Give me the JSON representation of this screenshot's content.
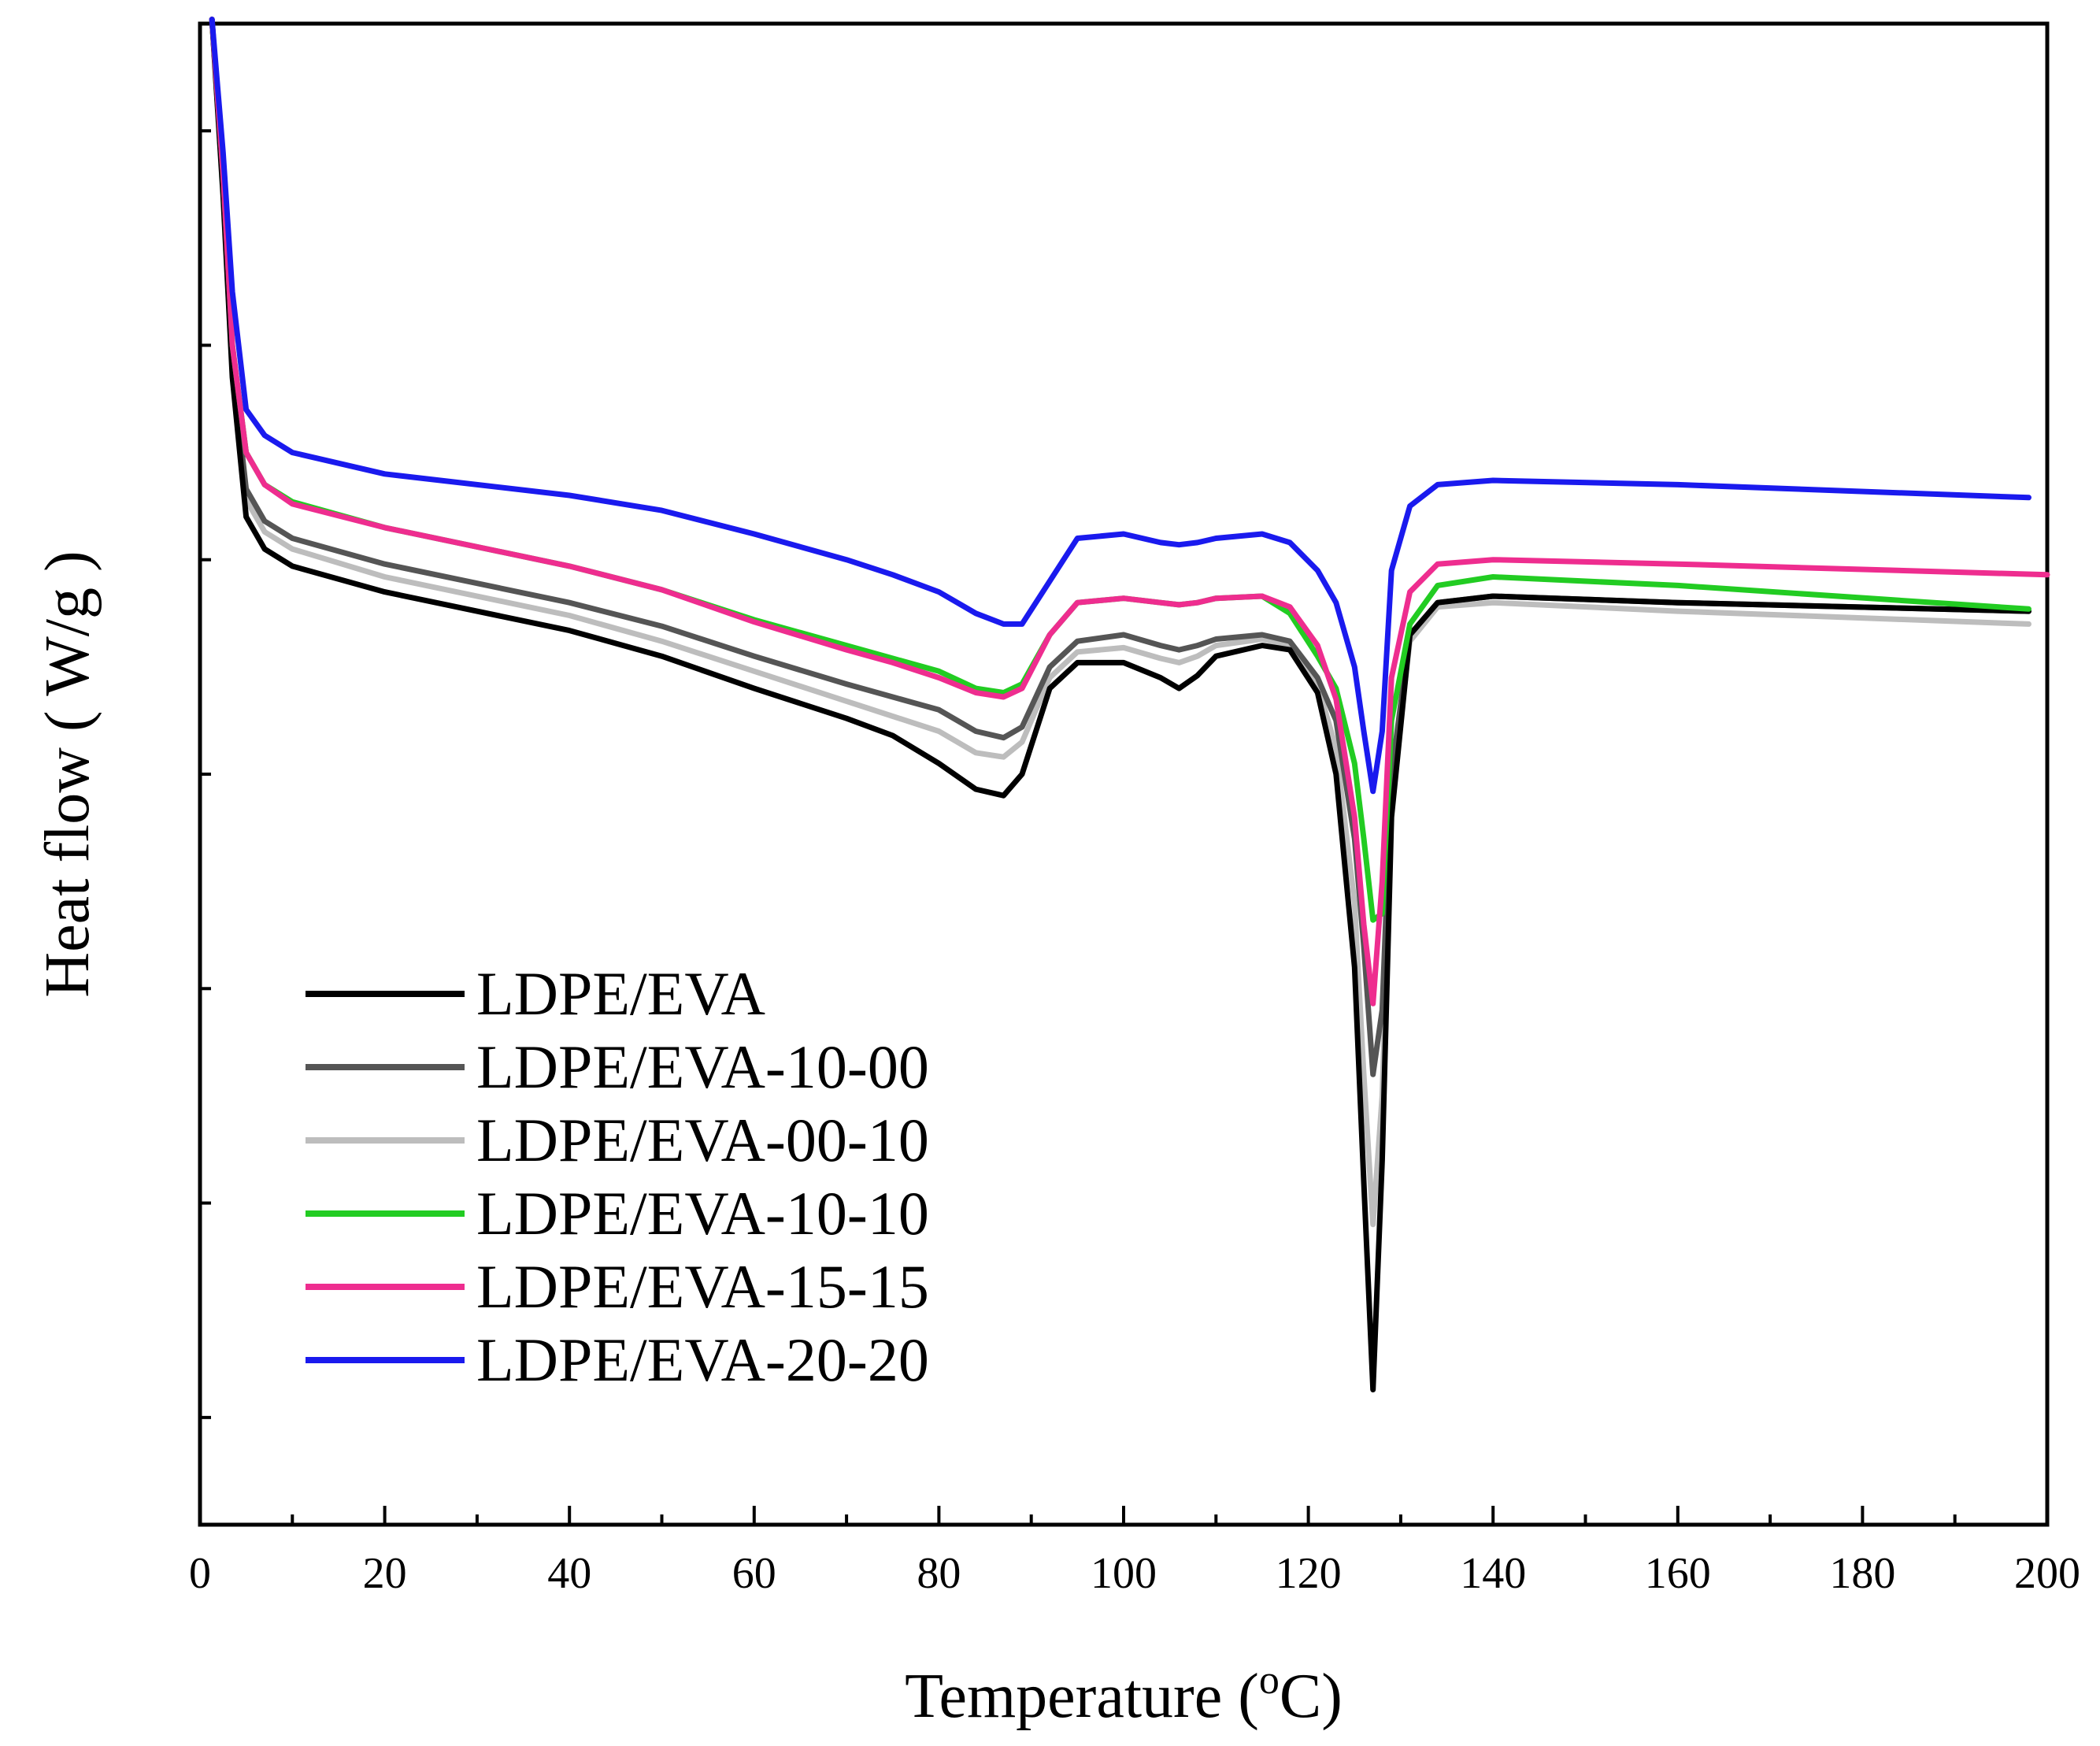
{
  "chart_data": {
    "type": "line",
    "title": "",
    "xlabel_main": "Temperature (",
    "xlabel_sup": "o",
    "xlabel_end": "C)",
    "ylabel": "Heat flow ( W/g )",
    "xlim": [
      0,
      200
    ],
    "ylim": [
      0,
      7
    ],
    "x_ticks": [
      0,
      20,
      40,
      60,
      80,
      100,
      120,
      140,
      160,
      180,
      200
    ],
    "x_tick_labels": [
      "0",
      "20",
      "40",
      "60",
      "80",
      "100",
      "120",
      "140",
      "160",
      "180",
      "200"
    ],
    "x_minor_step": 10,
    "y_ticks": [
      0.5,
      1.5,
      2.5,
      3.5,
      4.5,
      5.5,
      6.5
    ],
    "grid": false,
    "legend_position": "bottom-left",
    "series": [
      {
        "name": "LDPE/EVA",
        "color": "#000000",
        "x": [
          1.3,
          2.5,
          3.5,
          5,
          7,
          10,
          20,
          40,
          50,
          60,
          70,
          75,
          80,
          84,
          87,
          89,
          92,
          95,
          100,
          104,
          106,
          108,
          110,
          115,
          118,
          121,
          123,
          125,
          126,
          127,
          128,
          129,
          131,
          134,
          140,
          160,
          198
        ],
        "y": [
          7.02,
          6.2,
          5.35,
          4.7,
          4.55,
          4.47,
          4.35,
          4.17,
          4.05,
          3.9,
          3.76,
          3.68,
          3.55,
          3.43,
          3.4,
          3.5,
          3.9,
          4.02,
          4.02,
          3.95,
          3.9,
          3.96,
          4.05,
          4.1,
          4.08,
          3.88,
          3.5,
          2.6,
          1.6,
          0.63,
          1.7,
          3.3,
          4.15,
          4.3,
          4.33,
          4.3,
          4.26
        ]
      },
      {
        "name": "LDPE/EVA-10-00",
        "color": "#555555",
        "x": [
          1.3,
          2.5,
          3.5,
          5,
          7,
          10,
          20,
          40,
          50,
          60,
          70,
          75,
          80,
          84,
          87,
          89,
          92,
          95,
          100,
          104,
          106,
          108,
          110,
          115,
          118,
          121,
          123,
          125,
          126,
          127,
          128,
          129,
          131,
          134,
          140,
          160,
          198
        ],
        "y": [
          7.02,
          6.25,
          5.4,
          4.83,
          4.68,
          4.6,
          4.48,
          4.3,
          4.19,
          4.05,
          3.92,
          3.86,
          3.8,
          3.7,
          3.67,
          3.72,
          4.0,
          4.12,
          4.15,
          4.1,
          4.08,
          4.1,
          4.13,
          4.15,
          4.12,
          3.95,
          3.75,
          3.2,
          2.7,
          2.1,
          2.4,
          3.5,
          4.15,
          4.3,
          4.33,
          4.3,
          4.26
        ]
      },
      {
        "name": "LDPE/EVA-00-10",
        "color": "#bdbdbd",
        "x": [
          1.3,
          2.5,
          3.5,
          5,
          7,
          10,
          20,
          40,
          50,
          60,
          70,
          75,
          80,
          84,
          87,
          89,
          92,
          95,
          100,
          104,
          106,
          108,
          110,
          115,
          118,
          121,
          123,
          125,
          126,
          127,
          128,
          129,
          131,
          134,
          140,
          160,
          198
        ],
        "y": [
          7.02,
          6.22,
          5.38,
          4.78,
          4.63,
          4.55,
          4.42,
          4.24,
          4.12,
          3.98,
          3.84,
          3.77,
          3.7,
          3.6,
          3.58,
          3.65,
          3.95,
          4.07,
          4.09,
          4.04,
          4.02,
          4.05,
          4.1,
          4.13,
          4.1,
          3.92,
          3.62,
          2.9,
          2.1,
          1.4,
          2.0,
          3.4,
          4.12,
          4.28,
          4.3,
          4.26,
          4.2
        ]
      },
      {
        "name": "LDPE/EVA-10-10",
        "color": "#22cc22",
        "x": [
          1.3,
          2.5,
          3.5,
          5,
          7,
          10,
          20,
          40,
          50,
          60,
          70,
          75,
          80,
          84,
          87,
          89,
          92,
          95,
          100,
          104,
          106,
          108,
          110,
          115,
          118,
          121,
          123,
          125,
          126,
          127,
          128,
          129,
          131,
          134,
          140,
          160,
          198
        ],
        "y": [
          7.02,
          6.3,
          5.5,
          5.0,
          4.85,
          4.77,
          4.65,
          4.47,
          4.36,
          4.22,
          4.1,
          4.04,
          3.98,
          3.9,
          3.88,
          3.92,
          4.15,
          4.3,
          4.32,
          4.3,
          4.29,
          4.3,
          4.32,
          4.33,
          4.25,
          4.05,
          3.9,
          3.55,
          3.2,
          2.82,
          2.85,
          3.75,
          4.2,
          4.38,
          4.42,
          4.38,
          4.27
        ]
      },
      {
        "name": "LDPE/EVA-15-15",
        "color": "#ee2d8f",
        "x": [
          1.3,
          2.5,
          3.5,
          5,
          7,
          10,
          20,
          40,
          50,
          60,
          70,
          75,
          80,
          84,
          87,
          89,
          92,
          95,
          100,
          104,
          106,
          108,
          110,
          115,
          118,
          121,
          123,
          125,
          126,
          127,
          128,
          129,
          131,
          134,
          140,
          160,
          200
        ],
        "y": [
          7.02,
          6.3,
          5.5,
          5.0,
          4.85,
          4.76,
          4.65,
          4.47,
          4.36,
          4.21,
          4.08,
          4.02,
          3.95,
          3.88,
          3.86,
          3.9,
          4.15,
          4.3,
          4.32,
          4.3,
          4.29,
          4.3,
          4.32,
          4.33,
          4.28,
          4.1,
          3.85,
          3.3,
          2.8,
          2.43,
          3.0,
          3.95,
          4.35,
          4.48,
          4.5,
          4.48,
          4.43
        ]
      },
      {
        "name": "LDPE/EVA-20-20",
        "color": "#1a1aee",
        "x": [
          1.3,
          2.5,
          3.5,
          5,
          7,
          10,
          20,
          40,
          50,
          60,
          70,
          75,
          80,
          84,
          87,
          89,
          92,
          95,
          100,
          104,
          106,
          108,
          110,
          115,
          118,
          121,
          123,
          125,
          126,
          127,
          128,
          129,
          131,
          134,
          140,
          160,
          198
        ],
        "y": [
          7.02,
          6.4,
          5.75,
          5.2,
          5.08,
          5.0,
          4.9,
          4.8,
          4.73,
          4.62,
          4.5,
          4.43,
          4.35,
          4.25,
          4.2,
          4.2,
          4.4,
          4.6,
          4.62,
          4.58,
          4.57,
          4.58,
          4.6,
          4.62,
          4.58,
          4.45,
          4.3,
          4.0,
          3.7,
          3.42,
          3.7,
          4.45,
          4.75,
          4.85,
          4.87,
          4.85,
          4.79
        ]
      }
    ]
  }
}
